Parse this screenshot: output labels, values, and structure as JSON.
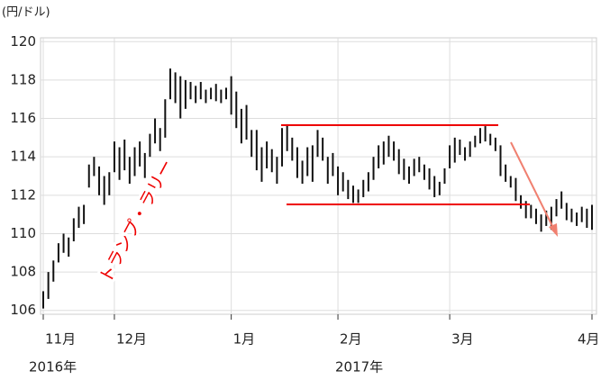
{
  "chart_data": {
    "type": "range",
    "unit_label": "(円/ドル)",
    "annotation": "トランプ・ラリー",
    "year_labels": [
      "2016年",
      "2017年"
    ],
    "categories": [
      "11月",
      null,
      null,
      null,
      null,
      null,
      null,
      null,
      null,
      null,
      null,
      null,
      null,
      null,
      "12月",
      null,
      null,
      null,
      null,
      null,
      null,
      null,
      null,
      null,
      null,
      null,
      null,
      null,
      null,
      null,
      null,
      null,
      null,
      null,
      null,
      null,
      null,
      "1月",
      null,
      null,
      null,
      null,
      null,
      null,
      null,
      null,
      null,
      null,
      null,
      null,
      null,
      null,
      null,
      null,
      null,
      null,
      null,
      null,
      "2月",
      null,
      null,
      null,
      null,
      null,
      null,
      null,
      null,
      null,
      null,
      null,
      null,
      null,
      null,
      null,
      null,
      null,
      null,
      null,
      null,
      null,
      "3月",
      null,
      null,
      null,
      null,
      null,
      null,
      null,
      null,
      null,
      null,
      null,
      null,
      null,
      null,
      null,
      null,
      null,
      null,
      null,
      null,
      null,
      null,
      null,
      null,
      null,
      null,
      null,
      "4月"
    ],
    "low": [
      106.1,
      106.6,
      107.5,
      108.5,
      109.0,
      108.8,
      109.6,
      110.3,
      110.5,
      112.4,
      113.0,
      112.0,
      111.5,
      112.0,
      113.2,
      112.8,
      113.3,
      112.6,
      113.0,
      113.5,
      112.9,
      114.0,
      114.7,
      114.3,
      115.0,
      117.0,
      116.8,
      116.0,
      116.5,
      117.0,
      116.8,
      117.0,
      116.8,
      117.0,
      116.9,
      116.8,
      117.0,
      116.2,
      115.5,
      114.7,
      114.9,
      114.0,
      113.3,
      112.7,
      113.4,
      113.2,
      112.6,
      113.5,
      114.3,
      113.8,
      112.9,
      112.6,
      113.0,
      112.7,
      114.0,
      113.8,
      112.6,
      113.0,
      112.0,
      112.2,
      111.8,
      111.6,
      111.6,
      111.9,
      112.2,
      112.8,
      113.4,
      113.6,
      114.0,
      113.8,
      113.1,
      112.8,
      112.6,
      113.0,
      113.2,
      112.8,
      112.3,
      111.9,
      112.0,
      112.6,
      113.4,
      113.7,
      114.1,
      113.8,
      114.0,
      114.5,
      114.7,
      114.8,
      114.6,
      114.3,
      113.0,
      112.7,
      112.4,
      111.7,
      111.3,
      110.8,
      110.8,
      110.5,
      110.1,
      110.4,
      110.2,
      110.9,
      111.3,
      110.7,
      110.6,
      110.4,
      110.6,
      110.3,
      110.2
    ],
    "high": [
      107.0,
      108.0,
      108.6,
      109.5,
      110.0,
      109.8,
      110.8,
      111.4,
      111.5,
      113.6,
      114.0,
      113.5,
      113.0,
      113.2,
      114.8,
      114.5,
      114.9,
      114.0,
      114.5,
      114.8,
      114.2,
      115.2,
      116.0,
      115.5,
      117.0,
      118.6,
      118.4,
      118.2,
      118.0,
      117.9,
      117.7,
      117.9,
      117.5,
      117.6,
      117.8,
      117.5,
      117.6,
      118.2,
      117.4,
      116.5,
      116.7,
      115.4,
      115.4,
      114.5,
      114.8,
      114.4,
      114.0,
      115.5,
      115.7,
      115.0,
      114.5,
      113.8,
      114.5,
      114.6,
      115.4,
      115.0,
      114.0,
      114.2,
      113.5,
      113.2,
      112.8,
      112.5,
      112.3,
      112.8,
      113.2,
      114.0,
      114.6,
      114.8,
      115.1,
      114.8,
      114.4,
      113.9,
      113.5,
      113.9,
      114.0,
      113.6,
      113.4,
      113.0,
      112.7,
      113.4,
      114.6,
      115.0,
      114.9,
      114.5,
      114.8,
      115.1,
      115.5,
      115.6,
      115.2,
      115.0,
      114.6,
      113.6,
      113.0,
      112.9,
      112.0,
      111.7,
      111.5,
      111.3,
      111.0,
      111.2,
      111.4,
      111.8,
      112.2,
      111.6,
      111.3,
      111.1,
      111.4,
      111.3,
      111.5
    ],
    "color": "#111111",
    "ylim": [
      105.8,
      120.2
    ],
    "yticks": [
      106,
      108,
      110,
      112,
      114,
      116,
      118,
      120
    ],
    "grid": true
  }
}
